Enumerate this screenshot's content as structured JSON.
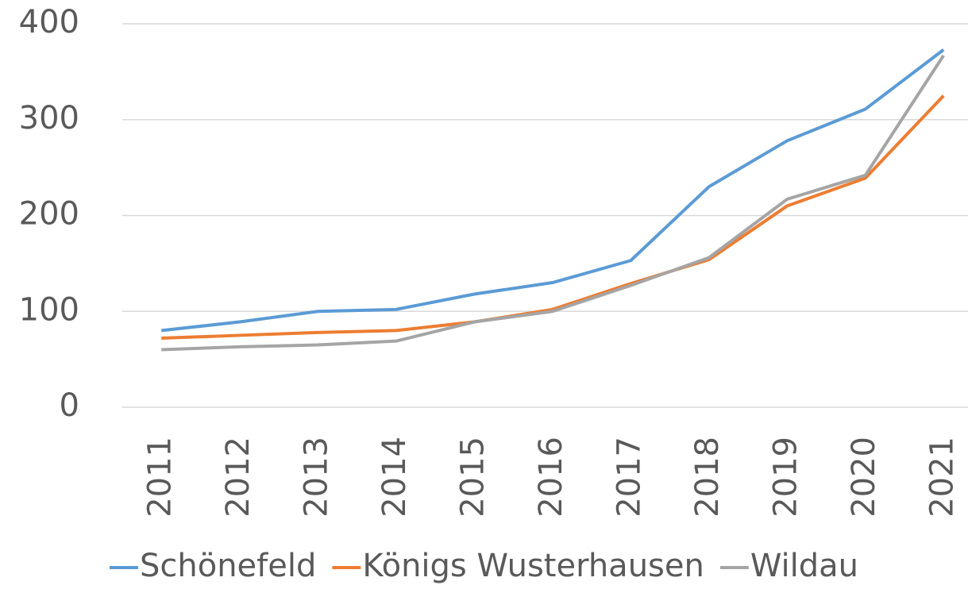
{
  "chart_data": {
    "type": "line",
    "categories": [
      "2011",
      "2012",
      "2013",
      "2014",
      "2015",
      "2016",
      "2017",
      "2018",
      "2019",
      "2020",
      "2021"
    ],
    "series": [
      {
        "name": "Schönefeld",
        "color": "#5b9bd5",
        "values": [
          80,
          89,
          100,
          102,
          118,
          130,
          153,
          230,
          278,
          311,
          373
        ]
      },
      {
        "name": "Königs Wusterhausen",
        "color": "#ed7d31",
        "values": [
          72,
          75,
          78,
          80,
          89,
          102,
          129,
          154,
          210,
          239,
          325
        ]
      },
      {
        "name": "Wildau",
        "color": "#a5a5a5",
        "values": [
          60,
          63,
          65,
          69,
          89,
          100,
          127,
          156,
          217,
          242,
          367
        ]
      }
    ],
    "ylim": [
      0,
      400
    ],
    "yticks": [
      0,
      100,
      200,
      300,
      400
    ],
    "grid": true,
    "legend": "bottom"
  }
}
